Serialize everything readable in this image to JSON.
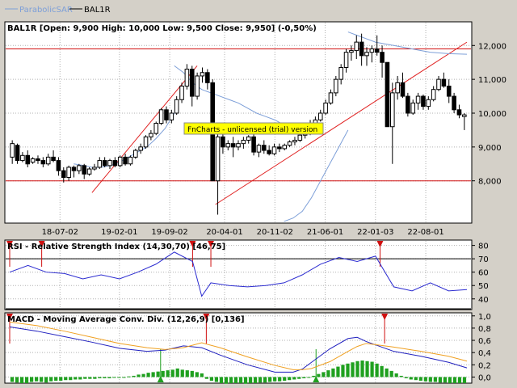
{
  "legend": {
    "items": [
      {
        "label": "ParabolicSAR",
        "color": "#7d9fd8"
      },
      {
        "label": "BAL1R",
        "color": "#000000"
      }
    ]
  },
  "watermark": "FnCharts - unlicensed (trial) version",
  "chart_data": [
    {
      "type": "candlestick",
      "title": "BAL1R [Open: 9,900  High: 10,000  Low: 9,500  Close: 9,950] (-0,50%)",
      "ylim": [
        6750,
        12700
      ],
      "y_ticks": [
        8000,
        9000,
        10000,
        11000,
        12000
      ],
      "y_tick_labels": [
        "8,000",
        "9,000",
        "10,000",
        "11,000",
        "12,000"
      ],
      "x_tick_labels": [
        "18-07-02",
        "19-02-01",
        "19-09-02",
        "20-04-01",
        "20-11-02",
        "21-06-01",
        "22-01-03",
        "22-08-01"
      ],
      "x_tick_index": [
        11,
        24,
        35,
        47,
        58,
        69,
        80,
        91
      ],
      "grid": true,
      "horizontal_lines": [
        8000,
        11900
      ],
      "candles": [
        [
          8700,
          9200,
          8500,
          9100
        ],
        [
          9050,
          9100,
          8500,
          8600
        ],
        [
          8600,
          8850,
          8550,
          8750
        ],
        [
          8750,
          8900,
          8400,
          8500
        ],
        [
          8550,
          8700,
          8500,
          8650
        ],
        [
          8650,
          8750,
          8500,
          8600
        ],
        [
          8600,
          8700,
          8400,
          8500
        ],
        [
          8500,
          8800,
          8450,
          8700
        ],
        [
          8700,
          8900,
          8550,
          8600
        ],
        [
          8600,
          8700,
          8150,
          8300
        ],
        [
          8300,
          8400,
          7950,
          8100
        ],
        [
          8100,
          8450,
          8000,
          8400
        ],
        [
          8400,
          8450,
          8100,
          8300
        ],
        [
          8300,
          8500,
          8200,
          8450
        ],
        [
          8450,
          8500,
          8050,
          8200
        ],
        [
          8200,
          8400,
          8150,
          8350
        ],
        [
          8350,
          8500,
          8300,
          8400
        ],
        [
          8400,
          8700,
          8350,
          8600
        ],
        [
          8600,
          8700,
          8400,
          8450
        ],
        [
          8450,
          8650,
          8350,
          8600
        ],
        [
          8600,
          8700,
          8400,
          8450
        ],
        [
          8450,
          8750,
          8400,
          8700
        ],
        [
          8700,
          8800,
          8450,
          8500
        ],
        [
          8500,
          8750,
          8450,
          8700
        ],
        [
          8700,
          8950,
          8650,
          8900
        ],
        [
          8900,
          9100,
          8800,
          9000
        ],
        [
          9000,
          9350,
          8950,
          9300
        ],
        [
          9300,
          9500,
          9200,
          9400
        ],
        [
          9400,
          9750,
          9350,
          9700
        ],
        [
          9700,
          10150,
          9650,
          10100
        ],
        [
          10100,
          10200,
          9700,
          9800
        ],
        [
          9800,
          10100,
          9700,
          10000
        ],
        [
          10000,
          10500,
          9950,
          10400
        ],
        [
          10400,
          10900,
          10300,
          10800
        ],
        [
          10800,
          11450,
          10700,
          11300
        ],
        [
          11300,
          11400,
          10200,
          10500
        ],
        [
          10500,
          11200,
          10400,
          11100
        ],
        [
          11100,
          11350,
          10900,
          11200
        ],
        [
          11200,
          11300,
          10700,
          10900
        ],
        [
          10900,
          11000,
          8000,
          8000
        ],
        [
          8000,
          9500,
          7000,
          9300
        ],
        [
          9300,
          9500,
          8800,
          9000
        ],
        [
          9000,
          9200,
          8900,
          9100
        ],
        [
          9100,
          9300,
          8700,
          9000
        ],
        [
          9000,
          9200,
          8900,
          9100
        ],
        [
          9100,
          9300,
          8950,
          9200
        ],
        [
          9200,
          9350,
          9100,
          9300
        ],
        [
          9300,
          9400,
          8750,
          8850
        ],
        [
          8850,
          9100,
          8700,
          9050
        ],
        [
          9050,
          9200,
          8800,
          8900
        ],
        [
          8900,
          9050,
          8750,
          8800
        ],
        [
          8800,
          9100,
          8750,
          9000
        ],
        [
          9000,
          9100,
          8850,
          8950
        ],
        [
          8950,
          9100,
          8900,
          9050
        ],
        [
          9050,
          9200,
          9000,
          9150
        ],
        [
          9150,
          9300,
          9050,
          9200
        ],
        [
          9200,
          9400,
          9150,
          9350
        ],
        [
          9350,
          9500,
          9250,
          9400
        ],
        [
          9400,
          9800,
          9350,
          9700
        ],
        [
          9700,
          9900,
          9600,
          9800
        ],
        [
          9800,
          10100,
          9750,
          10000
        ],
        [
          10000,
          10400,
          9950,
          10300
        ],
        [
          10300,
          10700,
          10250,
          10600
        ],
        [
          10600,
          11100,
          10500,
          11000
        ],
        [
          11000,
          11450,
          10850,
          11350
        ],
        [
          11350,
          11900,
          11200,
          11800
        ],
        [
          11800,
          12000,
          11550,
          11850
        ],
        [
          11850,
          12300,
          11600,
          12100
        ],
        [
          12100,
          12350,
          11400,
          11700
        ],
        [
          11700,
          11950,
          11400,
          11800
        ],
        [
          11800,
          12000,
          11500,
          11900
        ],
        [
          11900,
          12300,
          11700,
          11800
        ],
        [
          11800,
          12000,
          11050,
          11500
        ],
        [
          11500,
          11500,
          9600,
          9600
        ],
        [
          9600,
          10900,
          8500,
          10600
        ],
        [
          10600,
          11100,
          10400,
          10900
        ],
        [
          10900,
          11200,
          10450,
          10500
        ],
        [
          10500,
          10600,
          9900,
          10000
        ],
        [
          10000,
          10400,
          9950,
          10300
        ],
        [
          10300,
          10600,
          10100,
          10500
        ],
        [
          10500,
          10550,
          10100,
          10200
        ],
        [
          10200,
          10500,
          10100,
          10400
        ],
        [
          10400,
          10800,
          10350,
          10700
        ],
        [
          10700,
          11100,
          10650,
          11000
        ],
        [
          11000,
          11200,
          10750,
          10800
        ],
        [
          10800,
          11000,
          10300,
          10500
        ],
        [
          10500,
          10600,
          10000,
          10100
        ],
        [
          10100,
          10250,
          9850,
          9950
        ],
        [
          9900,
          10000,
          9500,
          9950
        ]
      ],
      "sar_segments": [
        {
          "x": [
            14,
            16,
            18,
            20,
            22,
            24,
            26,
            28,
            30,
            32,
            34,
            36
          ],
          "y": [
            8500,
            8460,
            8400,
            8400,
            8450,
            8550,
            8700,
            8850,
            9000,
            9250,
            9550,
            10000
          ]
        },
        {
          "x": [
            36,
            38,
            40,
            42,
            44,
            46,
            48,
            50,
            52,
            54,
            56,
            58,
            60
          ],
          "y": [
            11400,
            11200,
            10900,
            10700,
            10600,
            10500,
            10400,
            10300,
            10150,
            10000,
            9900,
            9800,
            9650
          ]
        },
        {
          "x": [
            60,
            62,
            64,
            66,
            68,
            70,
            72,
            74
          ],
          "y": [
            6800,
            6900,
            7100,
            7500,
            8000,
            8500,
            9000,
            9500
          ]
        },
        {
          "x": [
            74,
            76,
            78,
            80,
            82,
            84,
            86,
            88,
            90,
            92,
            94,
            96,
            98,
            100
          ],
          "y": [
            12400,
            12300,
            12200,
            12100,
            12050,
            12000,
            11950,
            11900,
            11850,
            11800,
            11780,
            11760,
            11750,
            11740
          ]
        }
      ],
      "trendlines": [
        {
          "x": [
            18,
            41
          ],
          "y": [
            7650,
            11400
          ]
        },
        {
          "x": [
            45,
            100
          ],
          "y": [
            7300,
            12100
          ]
        }
      ]
    },
    {
      "type": "line",
      "title": "RSI - Relative Strength Index (14,30,70) [46,75]",
      "ylim": [
        32,
        84
      ],
      "y_ticks": [
        40,
        50,
        60,
        70,
        80
      ],
      "y_tick_labels": [
        "40",
        "50",
        "60",
        "70",
        "80"
      ],
      "horizontal_lines": [
        70,
        30
      ],
      "x": [
        0,
        4,
        8,
        12,
        16,
        20,
        24,
        28,
        32,
        36,
        40,
        42,
        44,
        48,
        52,
        56,
        60,
        64,
        68,
        72,
        76,
        80,
        84,
        88,
        92,
        96,
        100
      ],
      "values": [
        60,
        65,
        60,
        59,
        55,
        58,
        55,
        60,
        66,
        75,
        68,
        42,
        52,
        50,
        49,
        50,
        52,
        58,
        66,
        71,
        68,
        72,
        49,
        46,
        52,
        46,
        47
      ],
      "markers": [
        {
          "x": 0,
          "side": "top"
        },
        {
          "x": 7,
          "side": "top"
        },
        {
          "x": 40,
          "side": "top"
        },
        {
          "x": 44,
          "side": "top"
        },
        {
          "x": 81,
          "side": "top"
        }
      ]
    },
    {
      "type": "bar",
      "title": "MACD - Moving Average Conv. Div. (12,26,9) [0,136]",
      "ylim": [
        -0.1,
        1.05
      ],
      "y_ticks": [
        0,
        0.2,
        0.4,
        0.6,
        0.8,
        1.0
      ],
      "y_tick_labels": [
        "0,0",
        "0,2",
        "0,4",
        "0,6",
        "0,8",
        "1,0"
      ],
      "hist": [
        -0.08,
        -0.09,
        -0.1,
        -0.1,
        -0.08,
        -0.07,
        -0.08,
        -0.09,
        -0.07,
        -0.06,
        -0.06,
        -0.05,
        -0.05,
        -0.04,
        -0.04,
        -0.03,
        -0.03,
        -0.03,
        -0.02,
        -0.02,
        -0.02,
        -0.01,
        -0.01,
        -0.01,
        0.01,
        0.02,
        0.04,
        0.05,
        0.07,
        0.08,
        0.09,
        0.1,
        0.11,
        0.12,
        0.14,
        0.12,
        0.11,
        0.1,
        0.08,
        0.06,
        -0.03,
        -0.06,
        -0.08,
        -0.1,
        -0.11,
        -0.1,
        -0.1,
        -0.1,
        -0.11,
        -0.1,
        -0.1,
        -0.09,
        -0.09,
        -0.08,
        -0.07,
        -0.07,
        -0.06,
        -0.05,
        -0.04,
        -0.03,
        -0.02,
        -0.01,
        0.02,
        0.05,
        0.08,
        0.11,
        0.14,
        0.17,
        0.2,
        0.22,
        0.24,
        0.26,
        0.27,
        0.26,
        0.25,
        0.22,
        0.18,
        0.14,
        0.1,
        0.06,
        0.02,
        -0.02,
        -0.04,
        -0.05,
        -0.06,
        -0.07,
        -0.08,
        -0.08,
        -0.09,
        -0.09,
        -0.1,
        -0.1,
        -0.1,
        -0.1
      ],
      "series": [
        {
          "color": "#1f1fbf",
          "x": [
            0,
            6,
            12,
            18,
            24,
            30,
            34,
            38,
            42,
            46,
            52,
            58,
            62,
            64,
            66,
            70,
            74,
            76,
            78,
            84,
            90,
            96,
            100
          ],
          "values": [
            0.82,
            0.75,
            0.66,
            0.57,
            0.47,
            0.42,
            0.44,
            0.51,
            0.48,
            0.36,
            0.2,
            0.08,
            0.08,
            0.13,
            0.24,
            0.46,
            0.63,
            0.65,
            0.58,
            0.42,
            0.34,
            0.24,
            0.15
          ]
        },
        {
          "color": "#f0a020",
          "x": [
            0,
            6,
            12,
            18,
            24,
            30,
            34,
            38,
            42,
            46,
            52,
            58,
            62,
            64,
            66,
            70,
            74,
            76,
            78,
            84,
            90,
            96,
            100
          ],
          "values": [
            0.9,
            0.84,
            0.75,
            0.65,
            0.55,
            0.48,
            0.45,
            0.48,
            0.56,
            0.48,
            0.33,
            0.19,
            0.12,
            0.12,
            0.14,
            0.25,
            0.42,
            0.5,
            0.55,
            0.49,
            0.42,
            0.34,
            0.26
          ]
        }
      ],
      "markers": [
        {
          "x": 0,
          "side": "top"
        },
        {
          "x": 33,
          "side": "bottom"
        },
        {
          "x": 43,
          "side": "top"
        },
        {
          "x": 67,
          "side": "bottom"
        },
        {
          "x": 82,
          "side": "top"
        }
      ]
    }
  ]
}
